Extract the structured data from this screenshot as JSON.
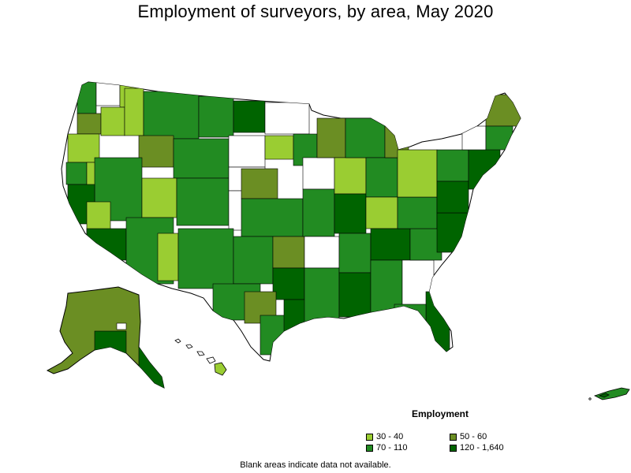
{
  "title": "Employment of surveyors, by area, May 2020",
  "legend": {
    "title": "Employment",
    "items": [
      {
        "label": "30 - 40",
        "color": "#9acd32"
      },
      {
        "label": "50 - 60",
        "color": "#6b8e23"
      },
      {
        "label": "70 - 110",
        "color": "#228b22"
      },
      {
        "label": "120 - 1,640",
        "color": "#006400"
      }
    ]
  },
  "footnote": "Blank areas indicate data not available.",
  "colors": {
    "outline": "#000000",
    "no_data": "#ffffff"
  }
}
